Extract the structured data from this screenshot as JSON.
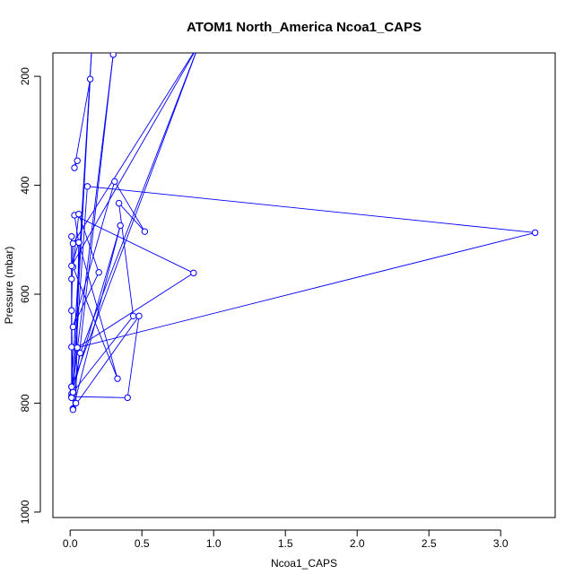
{
  "chart_data": {
    "type": "line",
    "title": "ATOM1 North_America Ncoa1_CAPS",
    "xlabel": "Ncoa1_CAPS",
    "ylabel": "Pressure (mbar)",
    "xlim": [
      -0.12,
      3.38
    ],
    "ylim": [
      1010,
      157
    ],
    "y_reversed": true,
    "grid": false,
    "x_ticks": [
      0.0,
      0.5,
      1.0,
      1.5,
      2.0,
      2.5,
      3.0
    ],
    "x_tick_labels": [
      "0.0",
      "0.5",
      "1.0",
      "1.5",
      "2.0",
      "2.5",
      "3.0"
    ],
    "y_ticks": [
      200,
      400,
      600,
      800,
      1000
    ],
    "y_tick_labels": [
      "200",
      "400",
      "600",
      "800",
      "1000"
    ],
    "color": "#0000ff",
    "series": [
      {
        "points": [
          [
            0.05,
            355
          ],
          [
            0.03,
            368
          ],
          [
            0.14,
            205
          ],
          [
            0.01,
            770
          ],
          [
            0.15,
            150
          ],
          [
            0.02,
            776
          ],
          [
            0.12,
            402
          ],
          [
            3.24,
            487
          ],
          [
            0.05,
            698
          ],
          [
            0.86,
            561
          ],
          [
            0.03,
            455
          ],
          [
            0.06,
            505
          ],
          [
            0.33,
            755
          ],
          [
            0.02,
            550
          ],
          [
            0.06,
            453
          ],
          [
            0.2,
            560
          ],
          [
            0.02,
            660
          ],
          [
            0.31,
            393
          ],
          [
            0.52,
            485
          ],
          [
            0.34,
            433
          ],
          [
            0.44,
            640
          ],
          [
            0.01,
            783
          ],
          [
            0.35,
            474
          ],
          [
            0.02,
            810
          ],
          [
            0.48,
            640
          ],
          [
            0.4,
            790
          ],
          [
            0.01,
            788
          ],
          [
            0.3,
            160
          ],
          [
            0.02,
            812
          ],
          [
            0.01,
            630
          ],
          [
            0.02,
            507
          ],
          [
            0.9,
            140
          ],
          [
            0.01,
            770
          ],
          [
            0.01,
            790
          ],
          [
            0.01,
            572
          ],
          [
            0.01,
            494
          ],
          [
            0.01,
            697
          ],
          [
            0.02,
            780
          ],
          [
            0.07,
            708
          ],
          [
            0.9,
            140
          ],
          [
            0.01,
            548
          ],
          [
            0.06,
            505
          ],
          [
            0.04,
            800
          ]
        ]
      }
    ]
  }
}
